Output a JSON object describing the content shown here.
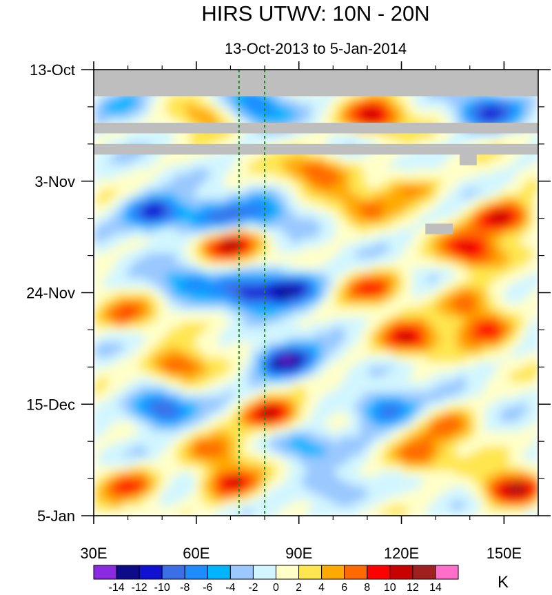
{
  "chart_data": {
    "type": "heatmap",
    "title": "HIRS UTWV: 10N - 20N",
    "subtitle": "13-Oct-2013 to 5-Jan-2014",
    "x_axis": {
      "range": [
        30,
        160
      ],
      "ticks": [
        30,
        60,
        90,
        120,
        150
      ],
      "tick_labels": [
        "30E",
        "60E",
        "90E",
        "120E",
        "150E"
      ]
    },
    "y_axis": {
      "range_days": [
        0,
        84
      ],
      "direction": "down",
      "ticks_days": [
        0,
        21,
        42,
        63,
        84
      ],
      "tick_labels": [
        "13-Oct",
        "3-Nov",
        "24-Nov",
        "15-Dec",
        "5-Jan"
      ],
      "minor_tick_days": [
        7,
        14,
        28,
        35,
        49,
        56,
        70,
        77
      ]
    },
    "reference_lines": [
      {
        "x": 72.5,
        "style": "dashed",
        "color": "#1a8a1a"
      },
      {
        "x": 80,
        "style": "dashed",
        "color": "#1a8a1a"
      }
    ],
    "missing_bands": [
      {
        "x": [
          30,
          160
        ],
        "day": [
          0,
          5
        ]
      },
      {
        "x": [
          30,
          160
        ],
        "day": [
          10,
          12
        ]
      },
      {
        "x": [
          30,
          160
        ],
        "day": [
          14,
          16
        ]
      },
      {
        "x": [
          137,
          142
        ],
        "day": [
          15,
          18
        ]
      },
      {
        "x": [
          127,
          135
        ],
        "day": [
          29,
          31
        ]
      }
    ],
    "features": [
      {
        "x": 40,
        "day": 7,
        "value": -6
      },
      {
        "x": 62,
        "day": 8,
        "value": 6
      },
      {
        "x": 78,
        "day": 7,
        "value": -8
      },
      {
        "x": 112,
        "day": 9,
        "value": 10
      },
      {
        "x": 145,
        "day": 8,
        "value": -10
      },
      {
        "x": 95,
        "day": 19,
        "value": 8
      },
      {
        "x": 122,
        "day": 22,
        "value": 6
      },
      {
        "x": 48,
        "day": 27,
        "value": -12
      },
      {
        "x": 65,
        "day": 28,
        "value": -8
      },
      {
        "x": 80,
        "day": 27,
        "value": -6
      },
      {
        "x": 108,
        "day": 26,
        "value": 6
      },
      {
        "x": 150,
        "day": 28,
        "value": 12
      },
      {
        "x": 70,
        "day": 33,
        "value": 10
      },
      {
        "x": 140,
        "day": 34,
        "value": 10
      },
      {
        "x": 56,
        "day": 40,
        "value": -6
      },
      {
        "x": 75,
        "day": 42,
        "value": -10
      },
      {
        "x": 88,
        "day": 41,
        "value": -12
      },
      {
        "x": 112,
        "day": 41,
        "value": 8
      },
      {
        "x": 40,
        "day": 46,
        "value": 6
      },
      {
        "x": 140,
        "day": 44,
        "value": 8
      },
      {
        "x": 55,
        "day": 56,
        "value": 10
      },
      {
        "x": 86,
        "day": 55,
        "value": -14
      },
      {
        "x": 122,
        "day": 51,
        "value": 10
      },
      {
        "x": 145,
        "day": 49,
        "value": 8
      },
      {
        "x": 50,
        "day": 64,
        "value": -12
      },
      {
        "x": 82,
        "day": 65,
        "value": 12
      },
      {
        "x": 115,
        "day": 64,
        "value": -10
      },
      {
        "x": 135,
        "day": 67,
        "value": 6
      },
      {
        "x": 65,
        "day": 72,
        "value": 6
      },
      {
        "x": 90,
        "day": 71,
        "value": -6
      },
      {
        "x": 125,
        "day": 73,
        "value": 8
      },
      {
        "x": 40,
        "day": 78,
        "value": 8
      },
      {
        "x": 70,
        "day": 78,
        "value": 10
      },
      {
        "x": 100,
        "day": 79,
        "value": -6
      },
      {
        "x": 152,
        "day": 79,
        "value": 12
      }
    ],
    "colorbar": {
      "units": "K",
      "levels": [
        -14,
        -12,
        -10,
        -8,
        -6,
        -4,
        -2,
        0,
        2,
        4,
        6,
        8,
        10,
        12,
        14
      ],
      "labels": [
        "-14",
        "-12",
        "-10",
        "-8",
        "-6",
        "-4",
        "-2",
        "0",
        "2",
        "4",
        "6",
        "8",
        "10",
        "12",
        "14"
      ],
      "colors": [
        "#8a2be2",
        "#0c0c8a",
        "#1111d2",
        "#3c6ee6",
        "#1e8cff",
        "#00b4ff",
        "#9ac8ff",
        "#d2f6ff",
        "#ffffc8",
        "#ffe650",
        "#ffaa00",
        "#ff6a00",
        "#ff0000",
        "#c80000",
        "#a02020",
        "#ff6ec8"
      ]
    },
    "missing_color": "#bebebe"
  }
}
